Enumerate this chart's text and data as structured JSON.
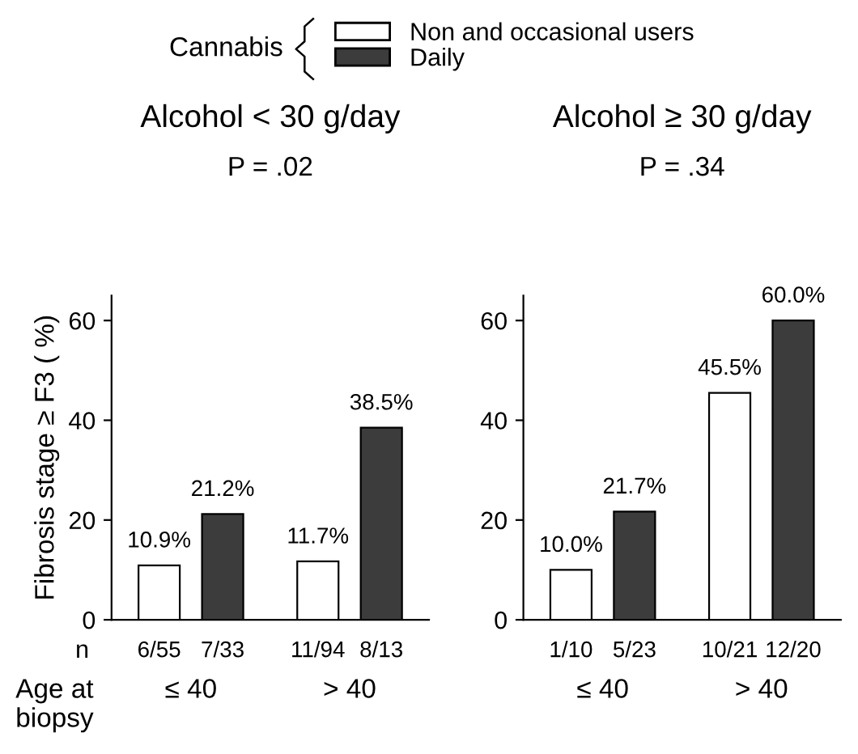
{
  "chart_data": [
    {
      "type": "bar",
      "title": "Alcohol < 30 g/day",
      "subtitle": "P = .02",
      "ylabel": "Fibrosis stage ≥ F3 ( %)",
      "legend_title": "Cannabis",
      "legend": "top",
      "categories": [
        "≤ 40",
        "> 40"
      ],
      "series": [
        {
          "name": "Non and occasional users",
          "color": "#ffffff",
          "values": [
            10.9,
            11.7
          ],
          "value_labels": [
            "10.9%",
            "11.7%"
          ]
        },
        {
          "name": "Daily",
          "color": "#3c3c3c",
          "values": [
            21.2,
            38.5
          ],
          "value_labels": [
            "21.2%",
            "38.5%"
          ]
        }
      ],
      "ylim": [
        0,
        65
      ],
      "yticks": [
        0,
        20,
        40,
        60
      ],
      "grid": false,
      "annotations": [
        "6/55",
        "11/94",
        "7/33",
        "8/13",
        "n",
        "Age at\nbiopsy"
      ]
    },
    {
      "type": "bar",
      "title": "Alcohol ≥ 30 g/day",
      "subtitle": "P = .34",
      "categories": [
        "≤ 40",
        "> 40"
      ],
      "series": [
        {
          "color": "#ffffff",
          "values": [
            10.0,
            45.5
          ],
          "value_labels": [
            "10.0%",
            "45.5%"
          ]
        },
        {
          "color": "#3c3c3c",
          "values": [
            21.7,
            60.0
          ],
          "value_labels": [
            "21.7%",
            "60.0%"
          ]
        }
      ],
      "ylim": [
        0,
        65
      ],
      "yticks": [
        0,
        20,
        40,
        60
      ],
      "grid": false,
      "annotations": [
        "1/10",
        "10/21",
        "5/23",
        "12/20"
      ]
    }
  ]
}
